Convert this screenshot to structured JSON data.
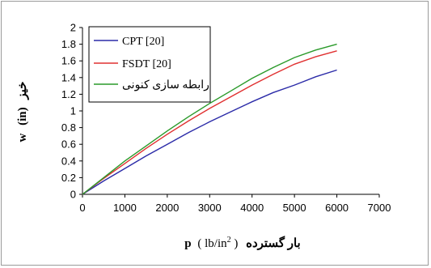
{
  "chart_data": {
    "type": "line",
    "xlabel": "بار گسترده ( lb/in² ) p",
    "xlabel_parts": {
      "persian": "بار گسترده",
      "unit": "( lb/in",
      "sup": "2",
      "close": " )",
      "symbol": "p"
    },
    "ylabel": "w (in) خیز",
    "ylabel_parts": {
      "symbol": "w",
      "unit": "(in)",
      "persian": "خیز"
    },
    "xlim": [
      0,
      7000
    ],
    "ylim": [
      0,
      2
    ],
    "xticks": [
      0,
      1000,
      2000,
      3000,
      4000,
      5000,
      6000,
      7000
    ],
    "yticks": [
      0,
      0.2,
      0.4,
      0.6,
      0.8,
      1,
      1.2,
      1.4,
      1.6,
      1.8,
      2
    ],
    "grid": false,
    "legend_position": "top-left",
    "series": [
      {
        "name": "CPT [20]",
        "color": "#2b2ba8",
        "x": [
          0,
          500,
          1000,
          1500,
          2000,
          2500,
          3000,
          3500,
          4000,
          4500,
          5000,
          5500,
          6000
        ],
        "y": [
          0,
          0.16,
          0.31,
          0.46,
          0.6,
          0.74,
          0.87,
          0.99,
          1.11,
          1.22,
          1.31,
          1.41,
          1.49
        ]
      },
      {
        "name": "FSDT [20]",
        "color": "#e03030",
        "x": [
          0,
          500,
          1000,
          1500,
          2000,
          2500,
          3000,
          3500,
          4000,
          4500,
          5000,
          5500,
          6000
        ],
        "y": [
          0,
          0.19,
          0.37,
          0.55,
          0.72,
          0.88,
          1.03,
          1.17,
          1.31,
          1.44,
          1.56,
          1.65,
          1.72
        ]
      },
      {
        "name": "رابطه سازی کنونی",
        "color": "#2a9a2a",
        "x": [
          0,
          500,
          1000,
          1500,
          2000,
          2500,
          3000,
          3500,
          4000,
          4500,
          5000,
          5500,
          6000
        ],
        "y": [
          0,
          0.2,
          0.4,
          0.58,
          0.76,
          0.93,
          1.09,
          1.24,
          1.39,
          1.52,
          1.64,
          1.73,
          1.8
        ]
      }
    ]
  }
}
